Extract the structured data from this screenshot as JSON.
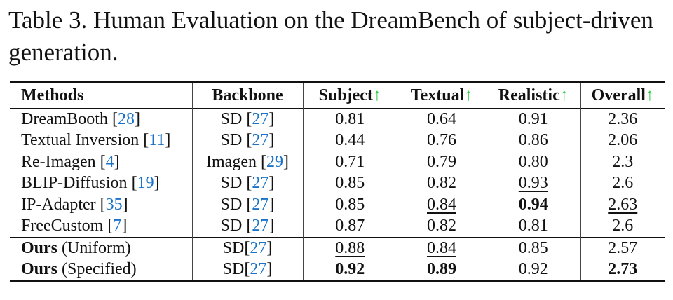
{
  "caption": {
    "line1": "Table 3. Human Evaluation on the DreamBench of subject-driven",
    "line2": "generation."
  },
  "header": {
    "methods": "Methods",
    "backbone": "Backbone",
    "subject": "Subject",
    "textual": "Textual",
    "realistic": "Realistic",
    "overall": "Overall",
    "arrow": "↑"
  },
  "rows": [
    {
      "name": "DreamBooth ",
      "name_bold": "",
      "name_rest": "",
      "ref": "28",
      "backbone": "SD ",
      "bref": "27",
      "subject": "0.81",
      "textual": "0.64",
      "realistic": "0.91",
      "overall": "2.36"
    },
    {
      "name": "Textual Inversion ",
      "name_bold": "",
      "name_rest": "",
      "ref": "11",
      "backbone": "SD ",
      "bref": "27",
      "subject": "0.44",
      "textual": "0.76",
      "realistic": "0.86",
      "overall": "2.06"
    },
    {
      "name": "Re-Imagen ",
      "name_bold": "",
      "name_rest": "",
      "ref": "4",
      "backbone": "Imagen ",
      "bref": "29",
      "subject": "0.71",
      "textual": "0.79",
      "realistic": "0.80",
      "overall": "2.3"
    },
    {
      "name": "BLIP-Diffusion ",
      "name_bold": "",
      "name_rest": "",
      "ref": "19",
      "backbone": "SD ",
      "bref": "27",
      "subject": "0.85",
      "textual": "0.82",
      "realistic": "0.93",
      "overall": "2.6"
    },
    {
      "name": "IP-Adapter ",
      "name_bold": "",
      "name_rest": "",
      "ref": "35",
      "backbone": "SD ",
      "bref": "27",
      "subject": "0.85",
      "textual": "0.84",
      "realistic": "0.94",
      "overall": "2.63"
    },
    {
      "name": "FreeCustom ",
      "name_bold": "",
      "name_rest": "",
      "ref": "7",
      "backbone": "SD ",
      "bref": "27",
      "subject": "0.87",
      "textual": "0.82",
      "realistic": "0.81",
      "overall": "2.6"
    },
    {
      "name": "",
      "name_bold": "Ours",
      "name_rest": " (Uniform)",
      "ref": "",
      "backbone": "SD",
      "bref": "27",
      "subject": "0.88",
      "textual": "0.84",
      "realistic": "0.85",
      "overall": "2.57"
    },
    {
      "name": "",
      "name_bold": "Ours",
      "name_rest": " (Specified)",
      "ref": "",
      "backbone": "SD",
      "bref": "27",
      "subject": "0.92",
      "textual": "0.89",
      "realistic": "0.92",
      "overall": "2.73"
    }
  ],
  "brackets": {
    "open": "[",
    "close": "]"
  }
}
